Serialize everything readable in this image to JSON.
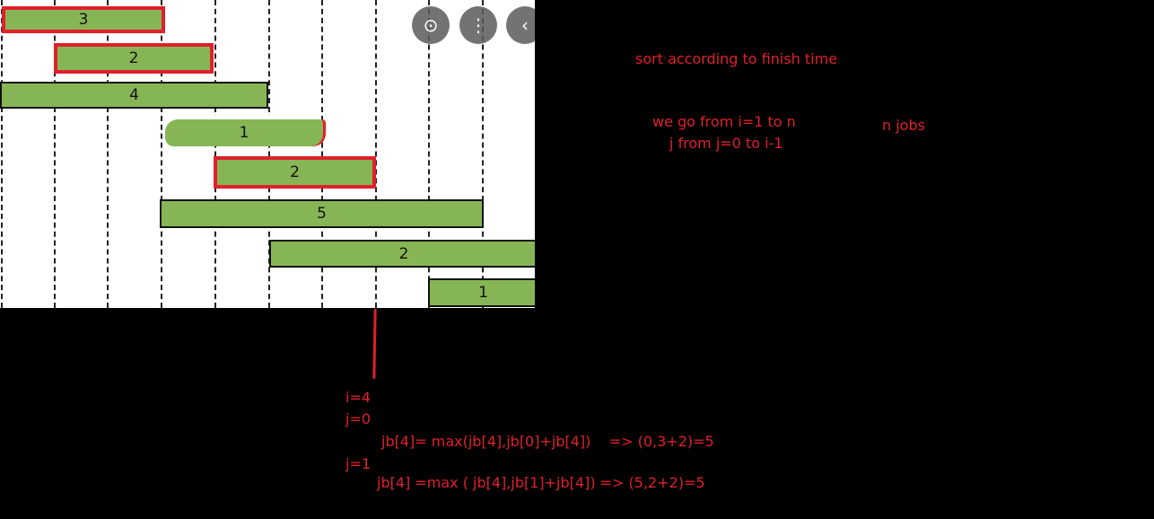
{
  "jobs": [
    {
      "label": "3",
      "highlighted": true
    },
    {
      "label": "2",
      "highlighted": true
    },
    {
      "label": "4",
      "highlighted": false
    },
    {
      "label": "1",
      "highlighted": false
    },
    {
      "label": "2",
      "highlighted": true
    },
    {
      "label": "5",
      "highlighted": false
    },
    {
      "label": "2",
      "highlighted": false
    },
    {
      "label": "1",
      "highlighted": false
    }
  ],
  "image_controls": [
    {
      "name": "lens-icon",
      "glyph": "⊙"
    },
    {
      "name": "more-options-icon",
      "glyph": "⋮"
    },
    {
      "name": "back-chevron-icon",
      "glyph": "‹"
    }
  ],
  "colors": {
    "bar": "#86b556",
    "annotation": "#e0202a",
    "background": "#000000"
  },
  "notes": {
    "sort": "sort according to finish time",
    "loop_i": "we go from i=1 to n",
    "loop_j": "j from j=0 to i-1",
    "n_jobs": "n jobs",
    "i_val": "i=4",
    "j0": "j=0",
    "step1": "jb[4]= max(jb[4],jb[0]+jb[4])    => (0,3+2)=5",
    "j1": "j=1",
    "step2": "jb[4] =max ( jb[4],jb[1]+jb[4]) => (5,2+2)=5"
  }
}
